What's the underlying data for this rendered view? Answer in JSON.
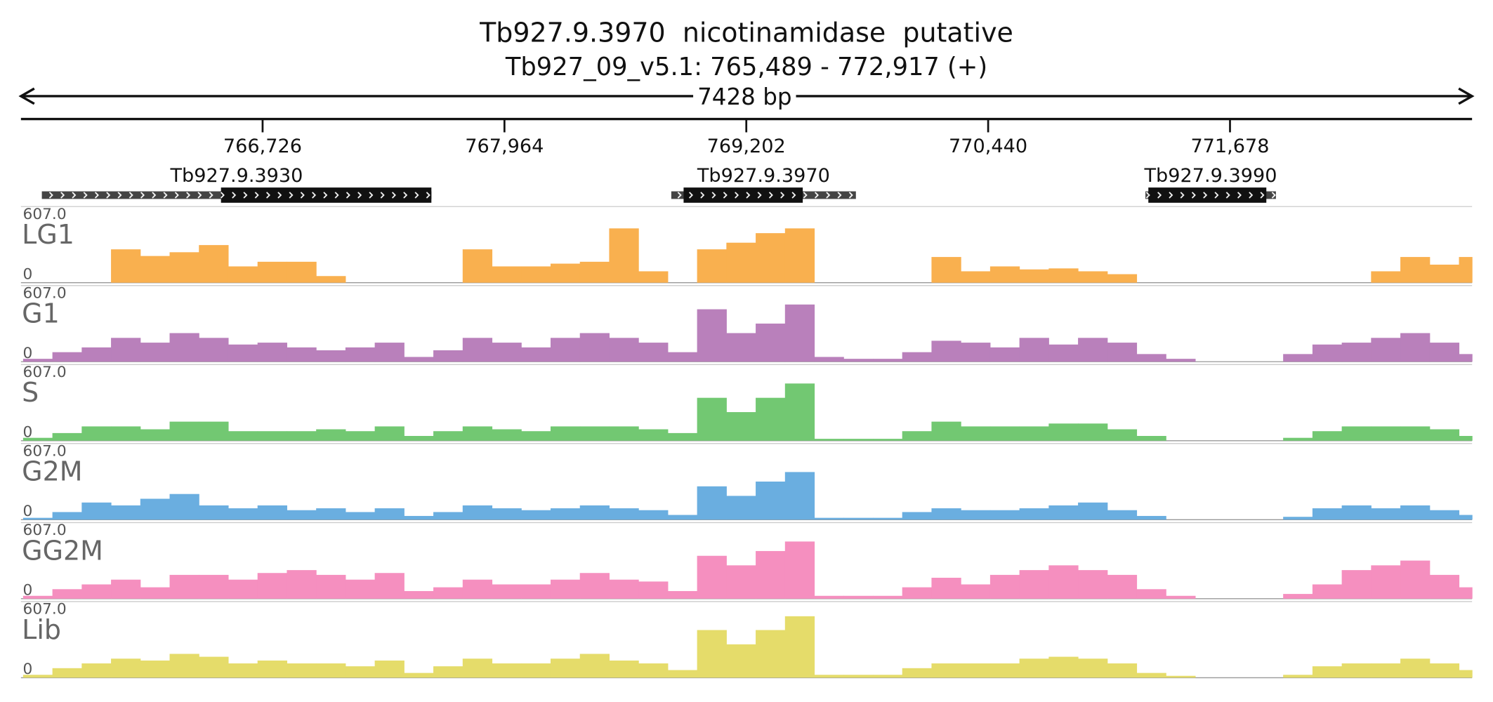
{
  "header": {
    "title": "Tb927.9.3970  nicotinamidase  putative",
    "location": "Tb927_09_v5.1: 765,489 - 772,917 (+)",
    "span": "7428 bp"
  },
  "chart_data": {
    "type": "coverage",
    "xlim": [
      765489,
      772917
    ],
    "xticks": [
      {
        "value": 766726,
        "label": "766,726"
      },
      {
        "value": 767964,
        "label": "767,964"
      },
      {
        "value": 769202,
        "label": "769,202"
      },
      {
        "value": 770440,
        "label": "770,440"
      },
      {
        "value": 771678,
        "label": "771,678"
      }
    ],
    "ylim": [
      0,
      607
    ],
    "yticks": [
      0,
      {
        "value": 607,
        "label": "607.0"
      }
    ],
    "genes": [
      {
        "name": "Tb927.9.3930",
        "start": 765596,
        "end": 767590,
        "cds_start": 766513,
        "cds_end": 767590
      },
      {
        "name": "Tb927.9.3970",
        "start": 768818,
        "end": 769763,
        "cds_start": 768881,
        "cds_end": 769491
      },
      {
        "name": "Tb927.9.3990",
        "start": 771245,
        "end": 771913,
        "cds_start": 771260,
        "cds_end": 771864
      }
    ],
    "x": [
      765500,
      765650,
      765800,
      765950,
      766100,
      766250,
      766400,
      766550,
      766700,
      766850,
      767000,
      767150,
      767300,
      767450,
      767600,
      767750,
      767900,
      768050,
      768200,
      768350,
      768500,
      768650,
      768800,
      768950,
      769100,
      769250,
      769400,
      769550,
      769700,
      769850,
      770000,
      770150,
      770300,
      770450,
      770600,
      770750,
      770900,
      771050,
      771200,
      771350,
      771500,
      771650,
      771800,
      771950,
      772100,
      772250,
      772400,
      772550,
      772700,
      772850
    ],
    "series": [
      {
        "name": "LG1",
        "color": "#f9b04f",
        "values": [
          0,
          0,
          0,
          266,
          213,
          243,
          300,
          130,
          167,
          167,
          53,
          0,
          0,
          0,
          0,
          266,
          130,
          130,
          152,
          167,
          433,
          91,
          0,
          266,
          319,
          395,
          433,
          0,
          0,
          0,
          0,
          205,
          91,
          130,
          106,
          114,
          91,
          68,
          0,
          0,
          0,
          0,
          0,
          0,
          0,
          0,
          91,
          205,
          144,
          205
        ]
      },
      {
        "name": "G1",
        "color": "#b980bb",
        "values": [
          23,
          76,
          114,
          190,
          152,
          228,
          190,
          137,
          152,
          114,
          91,
          114,
          152,
          38,
          91,
          190,
          152,
          114,
          190,
          228,
          190,
          152,
          76,
          418,
          228,
          304,
          456,
          38,
          23,
          23,
          76,
          167,
          152,
          114,
          190,
          137,
          190,
          152,
          61,
          23,
          0,
          0,
          0,
          61,
          137,
          152,
          190,
          228,
          152,
          61
        ]
      },
      {
        "name": "S",
        "color": "#72c872",
        "values": [
          23,
          61,
          114,
          114,
          91,
          152,
          152,
          76,
          76,
          76,
          91,
          76,
          114,
          38,
          76,
          114,
          91,
          76,
          114,
          114,
          114,
          91,
          61,
          342,
          228,
          342,
          456,
          15,
          15,
          15,
          76,
          152,
          114,
          114,
          114,
          137,
          137,
          91,
          38,
          0,
          0,
          0,
          0,
          23,
          76,
          114,
          114,
          114,
          91,
          38
        ]
      },
      {
        "name": "G2M",
        "color": "#6aaee0",
        "values": [
          15,
          61,
          137,
          114,
          167,
          205,
          114,
          91,
          114,
          76,
          91,
          61,
          91,
          30,
          61,
          114,
          91,
          76,
          91,
          114,
          91,
          76,
          38,
          266,
          190,
          304,
          380,
          15,
          15,
          15,
          61,
          91,
          76,
          76,
          91,
          114,
          137,
          76,
          30,
          0,
          0,
          0,
          0,
          23,
          91,
          114,
          91,
          114,
          76,
          38
        ]
      },
      {
        "name": "GG2M",
        "color": "#f58fbf",
        "values": [
          23,
          76,
          114,
          152,
          91,
          190,
          190,
          152,
          205,
          228,
          190,
          152,
          205,
          61,
          91,
          152,
          114,
          114,
          152,
          205,
          152,
          137,
          61,
          342,
          266,
          380,
          456,
          23,
          23,
          23,
          91,
          167,
          114,
          190,
          228,
          266,
          228,
          190,
          76,
          23,
          0,
          0,
          0,
          38,
          114,
          228,
          266,
          304,
          190,
          91
        ]
      },
      {
        "name": "Lib",
        "color": "#e5dc6a",
        "values": [
          23,
          76,
          114,
          152,
          137,
          190,
          167,
          114,
          137,
          114,
          114,
          91,
          137,
          38,
          91,
          152,
          114,
          114,
          152,
          190,
          137,
          114,
          61,
          380,
          266,
          380,
          490,
          23,
          23,
          23,
          76,
          114,
          114,
          114,
          152,
          167,
          152,
          114,
          38,
          15,
          0,
          0,
          0,
          23,
          91,
          114,
          114,
          152,
          114,
          61
        ]
      }
    ]
  }
}
